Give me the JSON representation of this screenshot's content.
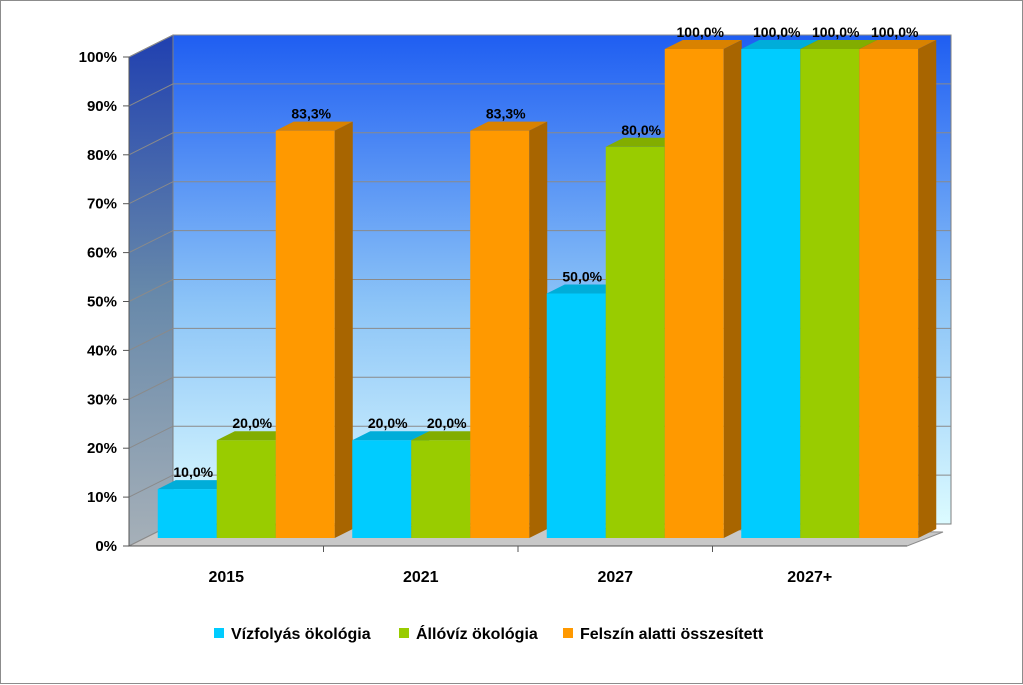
{
  "chart_data": {
    "type": "bar",
    "variant": "3d-clustered-column",
    "categories": [
      "2015",
      "2021",
      "2027",
      "2027+"
    ],
    "series": [
      {
        "name": "Vízfolyás ökológia",
        "color": "#00ccff",
        "values": [
          10.0,
          20.0,
          50.0,
          100.0
        ],
        "labels": [
          "10,0%",
          "20,0%",
          "50,0%",
          "100,0%"
        ]
      },
      {
        "name": "Állóvíz ökológia",
        "color": "#99cc00",
        "values": [
          20.0,
          20.0,
          80.0,
          100.0
        ],
        "labels": [
          "20,0%",
          "20,0%",
          "80,0%",
          "100,0%"
        ]
      },
      {
        "name": "Felszín alatti összesített",
        "color": "#ff9900",
        "values": [
          83.3,
          83.3,
          100.0,
          100.0
        ],
        "labels": [
          "83,3%",
          "83,3%",
          "100,0%",
          "100,0%"
        ]
      }
    ],
    "y_ticks": [
      "0%",
      "10%",
      "20%",
      "30%",
      "40%",
      "50%",
      "60%",
      "70%",
      "80%",
      "90%",
      "100%"
    ],
    "ylim": [
      0,
      100
    ],
    "grid": true,
    "legend": "bottom",
    "title": "",
    "xlabel": "",
    "ylabel": ""
  }
}
